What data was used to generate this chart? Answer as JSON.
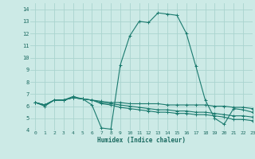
{
  "xlabel": "Humidex (Indice chaleur)",
  "xlim": [
    -0.5,
    23
  ],
  "ylim": [
    4,
    14.5
  ],
  "xticks": [
    0,
    1,
    2,
    3,
    4,
    5,
    6,
    7,
    8,
    9,
    10,
    11,
    12,
    13,
    14,
    15,
    16,
    17,
    18,
    19,
    20,
    21,
    22,
    23
  ],
  "yticks": [
    4,
    5,
    6,
    7,
    8,
    9,
    10,
    11,
    12,
    13,
    14
  ],
  "bg_color": "#cceae6",
  "grid_color": "#aad4cf",
  "line_color": "#1a7a6e",
  "series": [
    {
      "x": [
        0,
        1,
        2,
        3,
        4,
        5,
        6,
        7,
        8,
        9,
        10,
        11,
        12,
        13,
        14,
        15,
        16,
        17,
        18,
        19,
        20,
        21,
        22,
        23
      ],
      "y": [
        6.3,
        6.0,
        6.5,
        6.5,
        6.8,
        6.6,
        6.1,
        4.2,
        4.1,
        9.4,
        11.8,
        13.0,
        12.9,
        13.7,
        13.6,
        13.5,
        12.0,
        9.3,
        6.5,
        5.0,
        4.5,
        5.8,
        5.7,
        5.5
      ]
    },
    {
      "x": [
        0,
        1,
        2,
        3,
        4,
        5,
        6,
        7,
        8,
        9,
        10,
        11,
        12,
        13,
        14,
        15,
        16,
        17,
        18,
        19,
        20,
        21,
        22,
        23
      ],
      "y": [
        6.3,
        6.1,
        6.5,
        6.5,
        6.7,
        6.6,
        6.5,
        6.4,
        6.3,
        6.3,
        6.2,
        6.2,
        6.2,
        6.2,
        6.1,
        6.1,
        6.1,
        6.1,
        6.1,
        6.0,
        6.0,
        5.9,
        5.9,
        5.8
      ]
    },
    {
      "x": [
        0,
        1,
        2,
        3,
        4,
        5,
        6,
        7,
        8,
        9,
        10,
        11,
        12,
        13,
        14,
        15,
        16,
        17,
        18,
        19,
        20,
        21,
        22,
        23
      ],
      "y": [
        6.3,
        6.1,
        6.5,
        6.5,
        6.7,
        6.6,
        6.5,
        6.3,
        6.2,
        6.1,
        6.0,
        5.9,
        5.8,
        5.7,
        5.7,
        5.6,
        5.6,
        5.5,
        5.5,
        5.4,
        5.3,
        5.2,
        5.2,
        5.1
      ]
    },
    {
      "x": [
        0,
        1,
        2,
        3,
        4,
        5,
        6,
        7,
        8,
        9,
        10,
        11,
        12,
        13,
        14,
        15,
        16,
        17,
        18,
        19,
        20,
        21,
        22,
        23
      ],
      "y": [
        6.3,
        6.1,
        6.5,
        6.5,
        6.7,
        6.6,
        6.5,
        6.2,
        6.1,
        5.9,
        5.8,
        5.7,
        5.6,
        5.5,
        5.5,
        5.4,
        5.4,
        5.3,
        5.3,
        5.2,
        5.1,
        4.9,
        4.9,
        4.8
      ]
    }
  ]
}
